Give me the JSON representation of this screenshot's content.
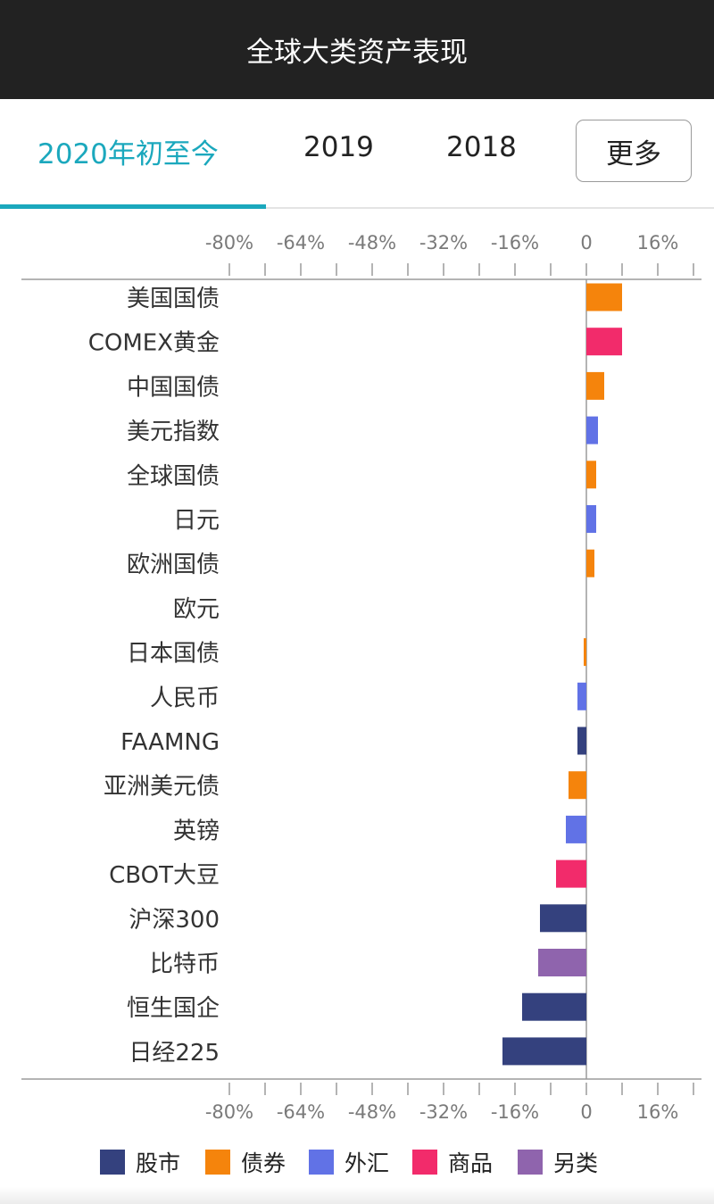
{
  "header": {
    "title": "全球大类资产表现"
  },
  "tabs": [
    {
      "label": "2020年初至今",
      "active": true
    },
    {
      "label": "2019",
      "active": false
    },
    {
      "label": "2018",
      "active": false
    }
  ],
  "more_button": {
    "label": "更多"
  },
  "colors": {
    "accent": "#1ba8bd",
    "股市": "#34417e",
    "债券": "#f5840c",
    "外汇": "#6172e6",
    "商品": "#f22b6b",
    "另类": "#8f64ad"
  },
  "legend": [
    {
      "label": "股市",
      "category": "股市"
    },
    {
      "label": "债券",
      "category": "债券"
    },
    {
      "label": "外汇",
      "category": "外汇"
    },
    {
      "label": "商品",
      "category": "商品"
    },
    {
      "label": "另类",
      "category": "另类"
    }
  ],
  "chart_data": {
    "type": "bar",
    "orientation": "horizontal",
    "title": "",
    "xlabel": "",
    "ylabel": "",
    "xlim": [
      -80,
      24
    ],
    "ticks": [
      -80,
      -72,
      -64,
      -56,
      -48,
      -40,
      -32,
      -24,
      -16,
      -8,
      0,
      8,
      16,
      24
    ],
    "tick_labels": [
      "-80%",
      "-64%",
      "-48%",
      "-32%",
      "-16%",
      "0",
      "16%"
    ],
    "tick_label_values": [
      -80,
      -64,
      -48,
      -32,
      -16,
      0,
      16
    ],
    "grid": false,
    "legend_position": "bottom",
    "categories": [
      "美国国债",
      "COMEX黄金",
      "中国国债",
      "美元指数",
      "全球国债",
      "日元",
      "欧洲国债",
      "欧元",
      "日本国债",
      "人民币",
      "FAAMNG",
      "亚洲美元债",
      "英镑",
      "CBOT大豆",
      "沪深300",
      "比特币",
      "恒生国企",
      "日经225"
    ],
    "values": [
      8.0,
      8.0,
      4.0,
      2.6,
      2.2,
      2.2,
      1.8,
      0.0,
      -0.6,
      -2.0,
      -2.0,
      -4.0,
      -4.6,
      -6.8,
      -10.4,
      -10.8,
      -14.4,
      -18.8
    ],
    "asset_class": [
      "债券",
      "商品",
      "债券",
      "外汇",
      "债券",
      "外汇",
      "债券",
      "外汇",
      "债券",
      "外汇",
      "股市",
      "债券",
      "外汇",
      "商品",
      "股市",
      "另类",
      "股市",
      "股市"
    ]
  }
}
